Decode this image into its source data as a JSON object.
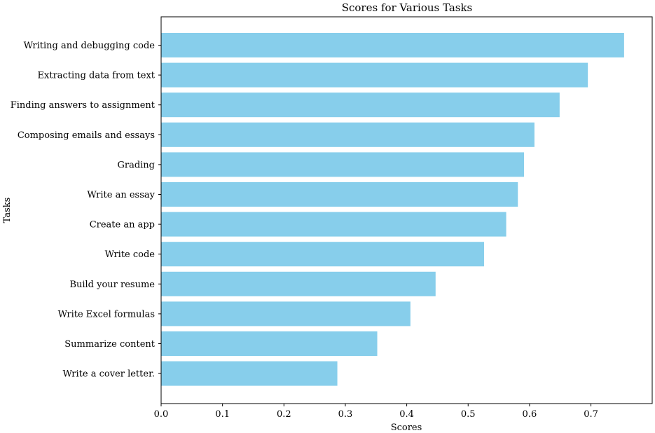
{
  "chart_data": {
    "type": "bar",
    "orientation": "horizontal",
    "title": "Scores for Various Tasks",
    "xlabel": "Scores",
    "ylabel": "Tasks",
    "xlim": [
      0,
      0.78
    ],
    "xticks": [
      0.0,
      0.1,
      0.2,
      0.3,
      0.4,
      0.5,
      0.6,
      0.7
    ],
    "xtick_labels": [
      "0.0",
      "0.1",
      "0.2",
      "0.3",
      "0.4",
      "0.5",
      "0.6",
      "0.7"
    ],
    "categories": [
      "Writing and debugging code",
      "Extracting data from text",
      "Finding answers to assignment",
      "Composing emails and essays",
      "Grading",
      "Write an essay",
      "Create an app",
      "Write code",
      "Build your resume",
      "Write Excel formulas",
      "Summarize content",
      "Write a cover letter."
    ],
    "values": [
      0.754,
      0.695,
      0.649,
      0.608,
      0.591,
      0.581,
      0.562,
      0.526,
      0.447,
      0.406,
      0.352,
      0.287
    ],
    "bar_color": "#87ceeb",
    "grid": false,
    "legend": "none"
  }
}
